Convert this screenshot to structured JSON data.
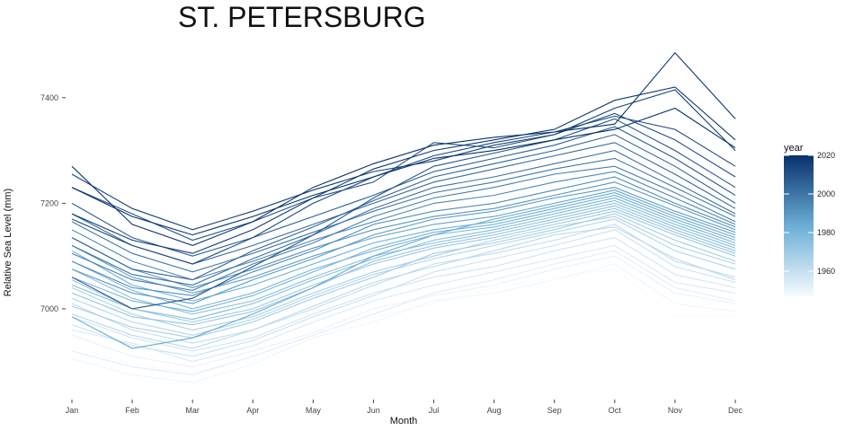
{
  "chart_data": {
    "type": "line",
    "title": "ST. PETERSBURG",
    "xlabel": "Month",
    "ylabel": "Relative Sea Level (mm)",
    "categories": [
      "Jan",
      "Feb",
      "Mar",
      "Apr",
      "May",
      "Jun",
      "Jul",
      "Aug",
      "Sep",
      "Oct",
      "Nov",
      "Dec"
    ],
    "y_ticks": [
      7000,
      7200,
      7400
    ],
    "ylim": [
      6840,
      7500
    ],
    "grid": false,
    "legend": {
      "title": "year",
      "placement": "right",
      "ticks": [
        1960,
        1980,
        2000,
        2020
      ],
      "range": [
        1947,
        2020
      ],
      "color_low": "#f7fbff",
      "color_high": "#08306b"
    },
    "series": [
      {
        "year": 1947,
        "values": [
          6930,
          6895,
          6880,
          6900,
          6945,
          6985,
          7010,
          7040,
          7060,
          7075,
          6985,
          6985
        ]
      },
      {
        "year": 1949,
        "values": [
          6905,
          6875,
          6860,
          6895,
          6945,
          6975,
          7015,
          7030,
          7055,
          7085,
          7010,
          6995
        ]
      },
      {
        "year": 1951,
        "values": [
          6950,
          6910,
          6890,
          6920,
          6955,
          7000,
          7025,
          7045,
          7075,
          7100,
          7030,
          7010
        ]
      },
      {
        "year": 1953,
        "values": [
          6920,
          6890,
          6875,
          6910,
          6950,
          6990,
          7030,
          7055,
          7085,
          7110,
          7040,
          7015
        ]
      },
      {
        "year": 1955,
        "values": [
          6960,
          6935,
          6900,
          6930,
          6975,
          7015,
          7045,
          7070,
          7095,
          7120,
          7050,
          7030
        ]
      },
      {
        "year": 1957,
        "values": [
          6985,
          6945,
          6920,
          6945,
          6990,
          7030,
          7060,
          7080,
          7110,
          7135,
          7065,
          7040
        ]
      },
      {
        "year": 1959,
        "values": [
          6970,
          6930,
          6910,
          6940,
          6985,
          7025,
          7070,
          7095,
          7120,
          7150,
          7080,
          7050
        ]
      },
      {
        "year": 1961,
        "values": [
          7010,
          6960,
          6935,
          6960,
          7000,
          7045,
          7085,
          7105,
          7130,
          7160,
          7090,
          7060
        ]
      },
      {
        "year": 1963,
        "values": [
          6990,
          6950,
          6925,
          6960,
          7005,
          7050,
          7080,
          7110,
          7140,
          7155,
          7095,
          7055
        ]
      },
      {
        "year": 1965,
        "values": [
          7020,
          6975,
          6950,
          6980,
          7025,
          7065,
          7095,
          7120,
          7145,
          7170,
          7110,
          7075
        ]
      },
      {
        "year": 1967,
        "values": [
          7040,
          6990,
          6960,
          6985,
          7030,
          7070,
          7100,
          7130,
          7155,
          7175,
          7120,
          7085
        ]
      },
      {
        "year": 1969,
        "values": [
          7005,
          6965,
          6945,
          6975,
          7020,
          7060,
          7105,
          7125,
          7150,
          7180,
          7130,
          7090
        ]
      },
      {
        "year": 1971,
        "values": [
          7055,
          7000,
          6975,
          7000,
          7045,
          7085,
          7115,
          7135,
          7160,
          7185,
          7140,
          7100
        ]
      },
      {
        "year": 1973,
        "values": [
          7030,
          6985,
          6970,
          6995,
          7040,
          7090,
          7120,
          7140,
          7165,
          7190,
          7145,
          7105
        ]
      },
      {
        "year": 1975,
        "values": [
          7075,
          7020,
          6990,
          7015,
          7060,
          7100,
          7125,
          7145,
          7170,
          7195,
          7150,
          7110
        ]
      },
      {
        "year": 1977,
        "values": [
          7045,
          7000,
          6980,
          7010,
          7055,
          7095,
          7130,
          7150,
          7175,
          7200,
          7155,
          7115
        ]
      },
      {
        "year": 1979,
        "values": [
          7090,
          7035,
          7000,
          7030,
          7075,
          7110,
          7140,
          7155,
          7180,
          7205,
          7160,
          7120
        ]
      },
      {
        "year": 1981,
        "values": [
          7060,
          7015,
          6995,
          7025,
          7070,
          7115,
          7145,
          7160,
          7185,
          7210,
          7165,
          7125
        ]
      },
      {
        "year": 1983,
        "values": [
          7110,
          7045,
          7015,
          7045,
          7085,
          7125,
          7150,
          7165,
          7190,
          7215,
          7170,
          7130
        ]
      },
      {
        "year": 1985,
        "values": [
          6985,
          6925,
          6945,
          6990,
          7040,
          7100,
          7140,
          7170,
          7195,
          7220,
          7175,
          7135
        ]
      },
      {
        "year": 1987,
        "values": [
          7120,
          7060,
          7030,
          7060,
          7100,
          7135,
          7160,
          7175,
          7200,
          7225,
          7180,
          7140
        ]
      },
      {
        "year": 1989,
        "values": [
          7075,
          7030,
          7010,
          7055,
          7095,
          7140,
          7170,
          7185,
          7210,
          7230,
          7185,
          7145
        ]
      },
      {
        "year": 1991,
        "values": [
          7135,
          7075,
          7040,
          7075,
          7115,
          7150,
          7175,
          7190,
          7215,
          7240,
          7195,
          7150
        ]
      },
      {
        "year": 1993,
        "values": [
          7090,
          7040,
          7025,
          7070,
          7110,
          7160,
          7185,
          7200,
          7225,
          7250,
          7200,
          7155
        ]
      },
      {
        "year": 1995,
        "values": [
          7150,
          7090,
          7055,
          7090,
          7130,
          7165,
          7200,
          7215,
          7240,
          7260,
          7210,
          7160
        ]
      },
      {
        "year": 1997,
        "values": [
          7105,
          7055,
          7035,
          7085,
          7125,
          7175,
          7210,
          7230,
          7255,
          7270,
          7220,
          7165
        ]
      },
      {
        "year": 1999,
        "values": [
          7165,
          7105,
          7070,
          7105,
          7145,
          7185,
          7220,
          7240,
          7265,
          7285,
          7230,
          7175
        ]
      },
      {
        "year": 2001,
        "values": [
          7120,
          7065,
          7045,
          7095,
          7140,
          7190,
          7230,
          7250,
          7275,
          7300,
          7240,
          7180
        ]
      },
      {
        "year": 2003,
        "values": [
          7180,
          7120,
          7085,
          7120,
          7160,
          7200,
          7240,
          7265,
          7290,
          7315,
          7255,
          7190
        ]
      },
      {
        "year": 2005,
        "values": [
          7135,
          7075,
          7055,
          7110,
          7155,
          7205,
          7250,
          7275,
          7300,
          7330,
          7270,
          7200
        ]
      },
      {
        "year": 2007,
        "values": [
          7200,
          7135,
          7100,
          7135,
          7175,
          7215,
          7260,
          7285,
          7310,
          7345,
          7285,
          7215
        ]
      },
      {
        "year": 2009,
        "values": [
          7060,
          7000,
          7020,
          7080,
          7140,
          7210,
          7270,
          7295,
          7320,
          7360,
          7300,
          7230
        ]
      },
      {
        "year": 2011,
        "values": [
          7230,
          7180,
          7130,
          7165,
          7210,
          7240,
          7315,
          7305,
          7330,
          7370,
          7320,
          7250
        ]
      },
      {
        "year": 2013,
        "values": [
          7170,
          7120,
          7085,
          7135,
          7200,
          7250,
          7290,
          7315,
          7335,
          7365,
          7340,
          7270
        ]
      },
      {
        "year": 2015,
        "values": [
          7255,
          7190,
          7150,
          7185,
          7225,
          7260,
          7280,
          7310,
          7330,
          7380,
          7415,
          7300
        ]
      },
      {
        "year": 2017,
        "values": [
          7180,
          7130,
          7105,
          7150,
          7210,
          7265,
          7300,
          7320,
          7340,
          7395,
          7420,
          7320
        ]
      },
      {
        "year": 2019,
        "values": [
          7270,
          7160,
          7120,
          7165,
          7230,
          7275,
          7310,
          7325,
          7335,
          7350,
          7485,
          7360
        ]
      },
      {
        "year": 2020,
        "values": [
          7230,
          7175,
          7140,
          7175,
          7215,
          7250,
          7285,
          7300,
          7320,
          7340,
          7380,
          7305
        ]
      }
    ]
  }
}
